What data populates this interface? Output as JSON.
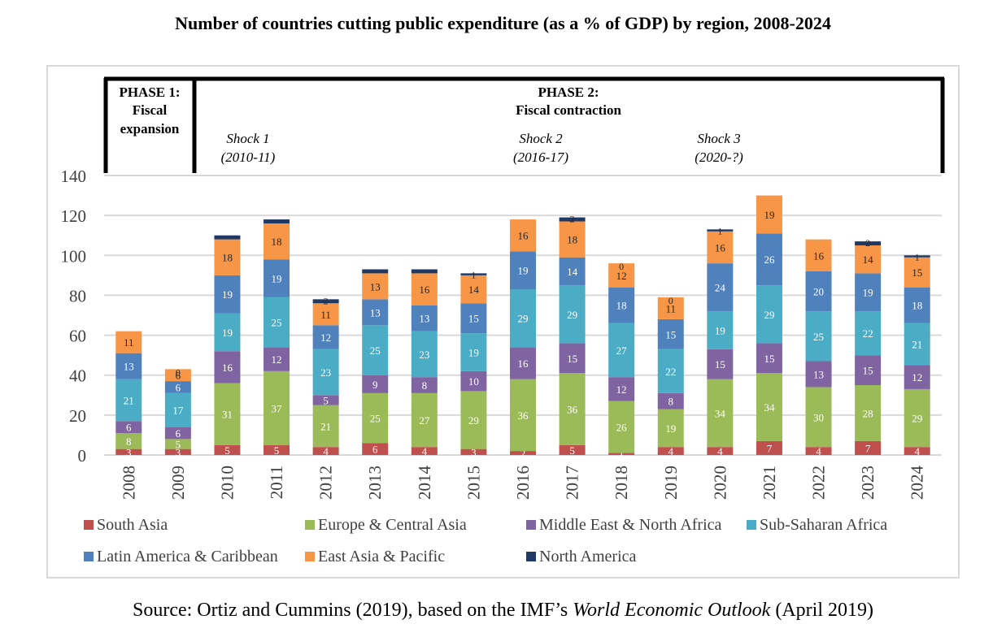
{
  "title": "Number of countries cutting public expenditure (as a % of GDP) by region, 2008-2024",
  "source": {
    "prefix": "Source: Ortiz and Cummins (2019), based on the IMF’s ",
    "italic": "World Economic Outlook",
    "suffix": " (April 2019)"
  },
  "phases": [
    {
      "label_line1": "PHASE 1:",
      "label_line2": "Fiscal",
      "label_line3": "expansion",
      "years": "2008-2009"
    },
    {
      "label_line1": "PHASE 2:",
      "label_line2": "Fiscal contraction",
      "years": "2010-2024"
    }
  ],
  "shocks": [
    {
      "name": "Shock 1",
      "period": "(2010-11)"
    },
    {
      "name": "Shock 2",
      "period": "(2016-17)"
    },
    {
      "name": "Shock 3",
      "period": "(2020-?)"
    }
  ],
  "chart_data": {
    "type": "bar",
    "stacked": true,
    "title": "Number of countries cutting public expenditure (as a % of GDP) by region, 2008-2024",
    "xlabel": "",
    "ylabel": "",
    "ylim": [
      0,
      140
    ],
    "yticks": [
      0,
      20,
      40,
      60,
      80,
      100,
      120,
      140
    ],
    "grid": true,
    "legend_position": "bottom",
    "categories": [
      "2008",
      "2009",
      "2010",
      "2011",
      "2012",
      "2013",
      "2014",
      "2015",
      "2016",
      "2017",
      "2018",
      "2019",
      "2020",
      "2021",
      "2022",
      "2023",
      "2024"
    ],
    "series": [
      {
        "name": "South Asia",
        "color": "#c0504d",
        "values": [
          3,
          3,
          5,
          5,
          4,
          6,
          4,
          3,
          2,
          5,
          1,
          4,
          4,
          7,
          4,
          7,
          4
        ],
        "labels_shown": [
          true,
          true,
          true,
          true,
          true,
          true,
          true,
          true,
          true,
          true,
          true,
          true,
          true,
          true,
          true,
          true,
          true
        ]
      },
      {
        "name": "Europe & Central Asia",
        "color": "#9bbb59",
        "values": [
          8,
          5,
          31,
          37,
          21,
          25,
          27,
          29,
          36,
          36,
          26,
          19,
          34,
          34,
          30,
          28,
          29
        ],
        "labels_shown": [
          true,
          true,
          true,
          true,
          true,
          true,
          true,
          true,
          true,
          true,
          true,
          true,
          true,
          true,
          true,
          true,
          true
        ]
      },
      {
        "name": "Middle East & North Africa",
        "color": "#8064a2",
        "values": [
          6,
          6,
          16,
          12,
          5,
          9,
          8,
          10,
          16,
          15,
          12,
          8,
          15,
          15,
          13,
          15,
          12
        ],
        "labels_shown": [
          true,
          true,
          true,
          true,
          true,
          true,
          true,
          true,
          true,
          true,
          true,
          true,
          true,
          true,
          true,
          true,
          true
        ]
      },
      {
        "name": "Sub-Saharan Africa",
        "color": "#4bacc6",
        "values": [
          21,
          17,
          19,
          25,
          23,
          25,
          23,
          19,
          29,
          29,
          27,
          22,
          19,
          29,
          25,
          22,
          21
        ],
        "labels_shown": [
          true,
          true,
          true,
          true,
          true,
          true,
          true,
          true,
          true,
          true,
          true,
          true,
          true,
          true,
          true,
          true,
          true
        ]
      },
      {
        "name": "Latin America & Caribbean",
        "color": "#4f81bd",
        "values": [
          13,
          6,
          19,
          19,
          12,
          13,
          13,
          15,
          19,
          14,
          18,
          15,
          24,
          26,
          20,
          19,
          18
        ],
        "labels_shown": [
          true,
          true,
          true,
          true,
          true,
          true,
          true,
          true,
          true,
          true,
          true,
          true,
          true,
          true,
          true,
          true,
          true
        ]
      },
      {
        "name": "East Asia & Pacific",
        "color": "#f79646",
        "values": [
          11,
          6,
          18,
          18,
          11,
          13,
          16,
          14,
          16,
          18,
          12,
          11,
          16,
          19,
          16,
          14,
          15
        ],
        "labels_shown": [
          true,
          true,
          true,
          true,
          true,
          true,
          true,
          true,
          true,
          true,
          true,
          true,
          true,
          true,
          true,
          true,
          true
        ]
      },
      {
        "name": "North America",
        "color": "#1f3864",
        "values": [
          0,
          0,
          2,
          2,
          2,
          2,
          2,
          1,
          0,
          2,
          0,
          0,
          1,
          0,
          0,
          2,
          1
        ],
        "labels_shown": [
          false,
          true,
          false,
          false,
          true,
          false,
          false,
          true,
          false,
          true,
          true,
          true,
          true,
          false,
          false,
          true,
          true
        ]
      }
    ]
  }
}
